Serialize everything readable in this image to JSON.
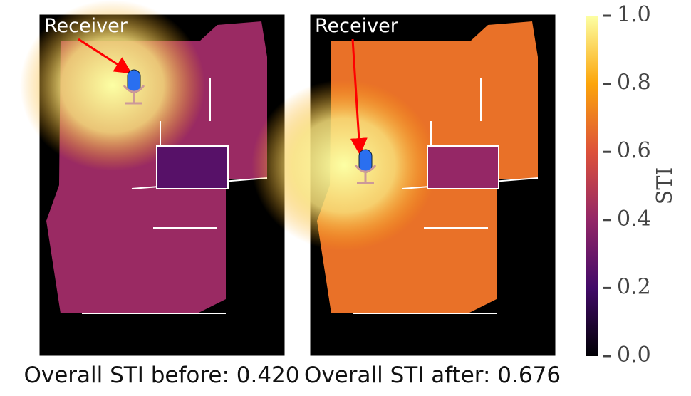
{
  "chart_data": {
    "type": "heatmap",
    "panels": [
      {
        "annotation": "Receiver",
        "label": "Overall STI before:",
        "value": 0.42,
        "value_label": "0.420"
      },
      {
        "annotation": "Receiver",
        "label": "Overall STI after:",
        "value": 0.676,
        "value_label": "0.676"
      }
    ],
    "colorbar": {
      "label": "STI",
      "colormap": "inferno",
      "lim": [
        0,
        1
      ],
      "ticks": [
        {
          "value": 0,
          "label": "0.0"
        },
        0.2,
        0.4,
        0.6,
        0.8,
        {
          "value": 1,
          "label": "1.0"
        }
      ]
    }
  }
}
